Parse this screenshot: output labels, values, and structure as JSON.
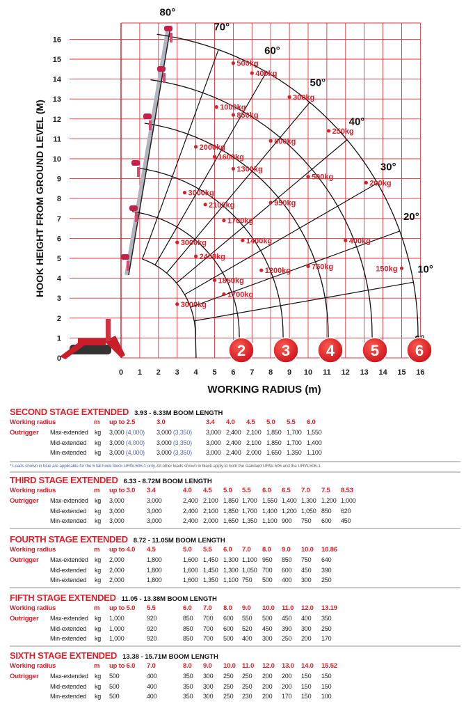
{
  "chart_data": {
    "type": "scatter",
    "xlabel": "WORKING RADIUS (m)",
    "ylabel": "HOOK HEIGHT FROM GROUND LEVEL (M)",
    "xlim": [
      0,
      16
    ],
    "ylim": [
      0,
      16
    ],
    "x_ticks": [
      "0",
      "1",
      "2",
      "3",
      "4",
      "5",
      "6",
      "7",
      "8",
      "9",
      "10",
      "11",
      "12",
      "13",
      "14",
      "15",
      "16"
    ],
    "y_ticks": [
      "0",
      "1",
      "2",
      "3",
      "4",
      "5",
      "6",
      "7",
      "8",
      "9",
      "10",
      "11",
      "12",
      "13",
      "14",
      "15",
      "16"
    ],
    "grid": true,
    "grid_color": "#e0303a",
    "arc_color": "#111111",
    "angle_labels": [
      "10°",
      "20°",
      "30°",
      "40°",
      "50°",
      "60°",
      "70°",
      "80°",
      "0°"
    ],
    "stage_badges": [
      "2",
      "3",
      "4",
      "5",
      "6"
    ],
    "badge_color": "#e0202a",
    "points": [
      {
        "x": 6.0,
        "y": 14.8,
        "label": "500kg"
      },
      {
        "x": 7.0,
        "y": 14.3,
        "label": "400kg"
      },
      {
        "x": 9.0,
        "y": 13.1,
        "label": "300kg"
      },
      {
        "x": 11.1,
        "y": 11.4,
        "label": "250kg"
      },
      {
        "x": 13.1,
        "y": 8.8,
        "label": "200kg"
      },
      {
        "x": 5.1,
        "y": 12.6,
        "label": "1000kg"
      },
      {
        "x": 6.0,
        "y": 12.2,
        "label": "850kg"
      },
      {
        "x": 8.0,
        "y": 10.9,
        "label": "600kg"
      },
      {
        "x": 10.0,
        "y": 9.1,
        "label": "500kg"
      },
      {
        "x": 12.0,
        "y": 5.9,
        "label": "400kg"
      },
      {
        "x": 15.0,
        "y": 4.5,
        "label": "150kg"
      },
      {
        "x": 4.0,
        "y": 10.6,
        "label": "2000kg"
      },
      {
        "x": 5.0,
        "y": 10.1,
        "label": "1600kg"
      },
      {
        "x": 6.0,
        "y": 9.5,
        "label": "1300kg"
      },
      {
        "x": 8.0,
        "y": 7.8,
        "label": "950kg"
      },
      {
        "x": 10.0,
        "y": 4.6,
        "label": "750kg"
      },
      {
        "x": 3.4,
        "y": 8.3,
        "label": "3000kg"
      },
      {
        "x": 4.5,
        "y": 7.7,
        "label": "2100kg"
      },
      {
        "x": 5.5,
        "y": 6.9,
        "label": "1700kg"
      },
      {
        "x": 6.5,
        "y": 5.9,
        "label": "1400kg"
      },
      {
        "x": 7.5,
        "y": 4.4,
        "label": "1200kg"
      },
      {
        "x": 3.0,
        "y": 5.8,
        "label": "3000kg"
      },
      {
        "x": 4.0,
        "y": 5.1,
        "label": "2400kg"
      },
      {
        "x": 5.0,
        "y": 3.9,
        "label": "1850kg"
      },
      {
        "x": 5.5,
        "y": 3.2,
        "label": "1700kg"
      },
      {
        "x": 3.0,
        "y": 2.7,
        "label": "3000kg"
      }
    ]
  },
  "table_labels": {
    "working_radius": "Working radius",
    "outrigger": "Outrigger",
    "unit_m": "m",
    "unit_kg": "kg",
    "rows": [
      "Max-extended",
      "Mid-extended",
      "Min-extended"
    ]
  },
  "footnote": {
    "blue_part": "* Loads shown in blue are applicable for the 5 fall hook block URW-506-1 only.",
    "black_part": "All other loads shown in black apply to both the standard URW-506 and the URW-506-1."
  },
  "colors": {
    "accent_red": "#e0202a",
    "blue_loads": "#5a6ab0"
  },
  "sections": [
    {
      "title": "SECOND STAGE EXTENDED",
      "boom": "3.93 - 6.33M BOOM LENGTH",
      "radius": [
        "up to 2.5",
        "3.0",
        "3.4",
        "4.0",
        "4.5",
        "5.0",
        "5.5",
        "6.0"
      ],
      "rows": [
        [
          [
            "3,000",
            "(4,000)"
          ],
          [
            "3,000",
            "(3,350)"
          ],
          "3,000",
          "2,400",
          "2,100",
          "1,850",
          "1,700",
          "1,550"
        ],
        [
          [
            "3,000",
            "(4,000)"
          ],
          [
            "3,000",
            "(3,350)"
          ],
          "3,000",
          "2,400",
          "2,100",
          "1,850",
          "1,700",
          "1,400"
        ],
        [
          [
            "3,000",
            "(4,000)"
          ],
          [
            "3,000",
            "(3,350)"
          ],
          "3,000",
          "2,400",
          "2,000",
          "1,650",
          "1,350",
          "1,100"
        ]
      ]
    },
    {
      "title": "THIRD STAGE EXTENDED",
      "boom": "6.33 - 8.72M BOOM LENGTH",
      "radius": [
        "up to 3.0",
        "3.4",
        "4.0",
        "4.5",
        "5.0",
        "5.5",
        "6.0",
        "6.5",
        "7.0",
        "7.5",
        "8.53"
      ],
      "rows": [
        [
          "3,000",
          "3,000",
          "2,400",
          "2,100",
          "1,850",
          "1,700",
          "1,550",
          "1,400",
          "1,300",
          "1,200",
          "1,000"
        ],
        [
          "3,000",
          "3,000",
          "2,400",
          "2,100",
          "1,850",
          "1,700",
          "1,400",
          "1,200",
          "1,050",
          "850",
          "620"
        ],
        [
          "3,000",
          "3,000",
          "2,400",
          "2,000",
          "1,650",
          "1,350",
          "1,100",
          "900",
          "750",
          "600",
          "450"
        ]
      ]
    },
    {
      "title": "FOURTH STAGE EXTENDED",
      "boom": "8.72 - 11.05M BOOM LENGTH",
      "radius": [
        "up to 4.0",
        "4.5",
        "5.0",
        "5.5",
        "6.0",
        "7.0",
        "8.0",
        "9.0",
        "10.0",
        "10.86"
      ],
      "rows": [
        [
          "2,000",
          "1,800",
          "1,600",
          "1,450",
          "1,300",
          "1,100",
          "950",
          "850",
          "750",
          "640"
        ],
        [
          "2,000",
          "1,800",
          "1,600",
          "1,450",
          "1,300",
          "1,050",
          "700",
          "600",
          "450",
          "390"
        ],
        [
          "2,000",
          "1,800",
          "1,600",
          "1,350",
          "1,100",
          "750",
          "500",
          "400",
          "300",
          "250"
        ]
      ]
    },
    {
      "title": "FIFTH STAGE EXTENDED",
      "boom": "11.05 - 13.38M BOOM LENGTH",
      "radius": [
        "up to 5.0",
        "5.5",
        "6.0",
        "7.0",
        "8.0",
        "9.0",
        "10.0",
        "11.0",
        "12.0",
        "13.19"
      ],
      "rows": [
        [
          "1,000",
          "920",
          "850",
          "700",
          "600",
          "550",
          "500",
          "450",
          "400",
          "350"
        ],
        [
          "1,000",
          "920",
          "850",
          "700",
          "600",
          "520",
          "450",
          "390",
          "300",
          "250"
        ],
        [
          "1,000",
          "920",
          "850",
          "700",
          "500",
          "400",
          "300",
          "250",
          "200",
          "170"
        ]
      ]
    },
    {
      "title": "SIXTH STAGE EXTENDED",
      "boom": "13.38 - 15.71M BOOM LENGTH",
      "radius": [
        "up to 6.0",
        "7.0",
        "8.0",
        "9.0",
        "10.0",
        "11.0",
        "12.0",
        "13.0",
        "14.0",
        "15.52"
      ],
      "rows": [
        [
          "500",
          "400",
          "350",
          "300",
          "250",
          "250",
          "200",
          "200",
          "150",
          "150"
        ],
        [
          "500",
          "400",
          "350",
          "300",
          "250",
          "250",
          "200",
          "200",
          "150",
          "150"
        ],
        [
          "500",
          "400",
          "350",
          "300",
          "250",
          "230",
          "200",
          "170",
          "150",
          "100"
        ]
      ]
    }
  ]
}
